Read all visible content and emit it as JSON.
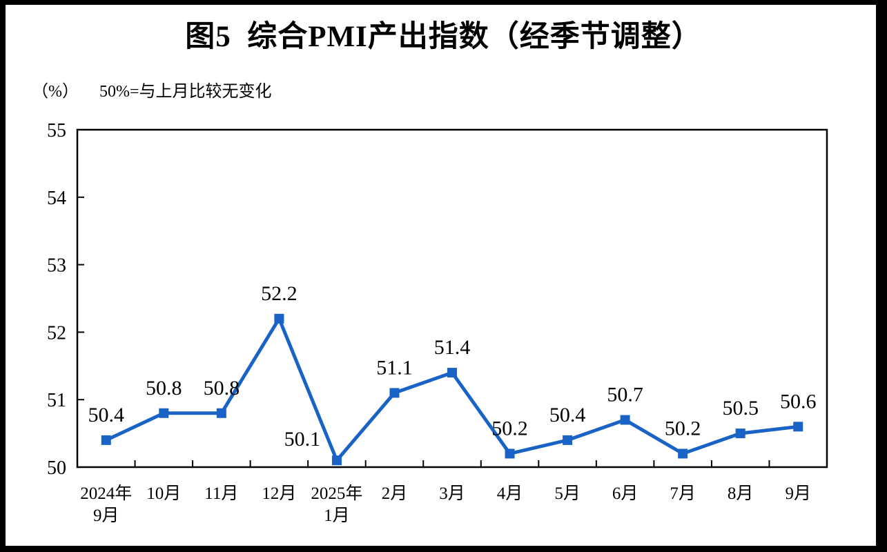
{
  "chart_data": {
    "type": "line",
    "title": "图5  综合PMI产出指数（经季节调整）",
    "unit_label": "（%）",
    "note": "50%=与上月比较无变化",
    "categories": [
      "2024年\n9月",
      "10月",
      "11月",
      "12月",
      "2025年\n1月",
      "2月",
      "3月",
      "4月",
      "5月",
      "6月",
      "7月",
      "8月",
      "9月"
    ],
    "series": [
      {
        "name": "综合PMI产出指数",
        "values": [
          50.4,
          50.8,
          50.8,
          52.2,
          50.1,
          51.1,
          51.4,
          50.2,
          50.4,
          50.7,
          50.2,
          50.5,
          50.6
        ],
        "data_labels": [
          "50.4",
          "50.8",
          "50.8",
          "52.2",
          "50.1",
          "51.1",
          "51.4",
          "50.2",
          "50.4",
          "50.7",
          "50.2",
          "50.5",
          "50.6"
        ]
      }
    ],
    "ylim": [
      50,
      55
    ],
    "yticks": [
      50,
      51,
      52,
      53,
      54,
      55
    ],
    "grid": false,
    "legend": "none",
    "marker": "square",
    "line_color": "#1A63C6",
    "text_color": "#000000",
    "axis_color": "#000000",
    "background_color": "#FFFFFF"
  }
}
